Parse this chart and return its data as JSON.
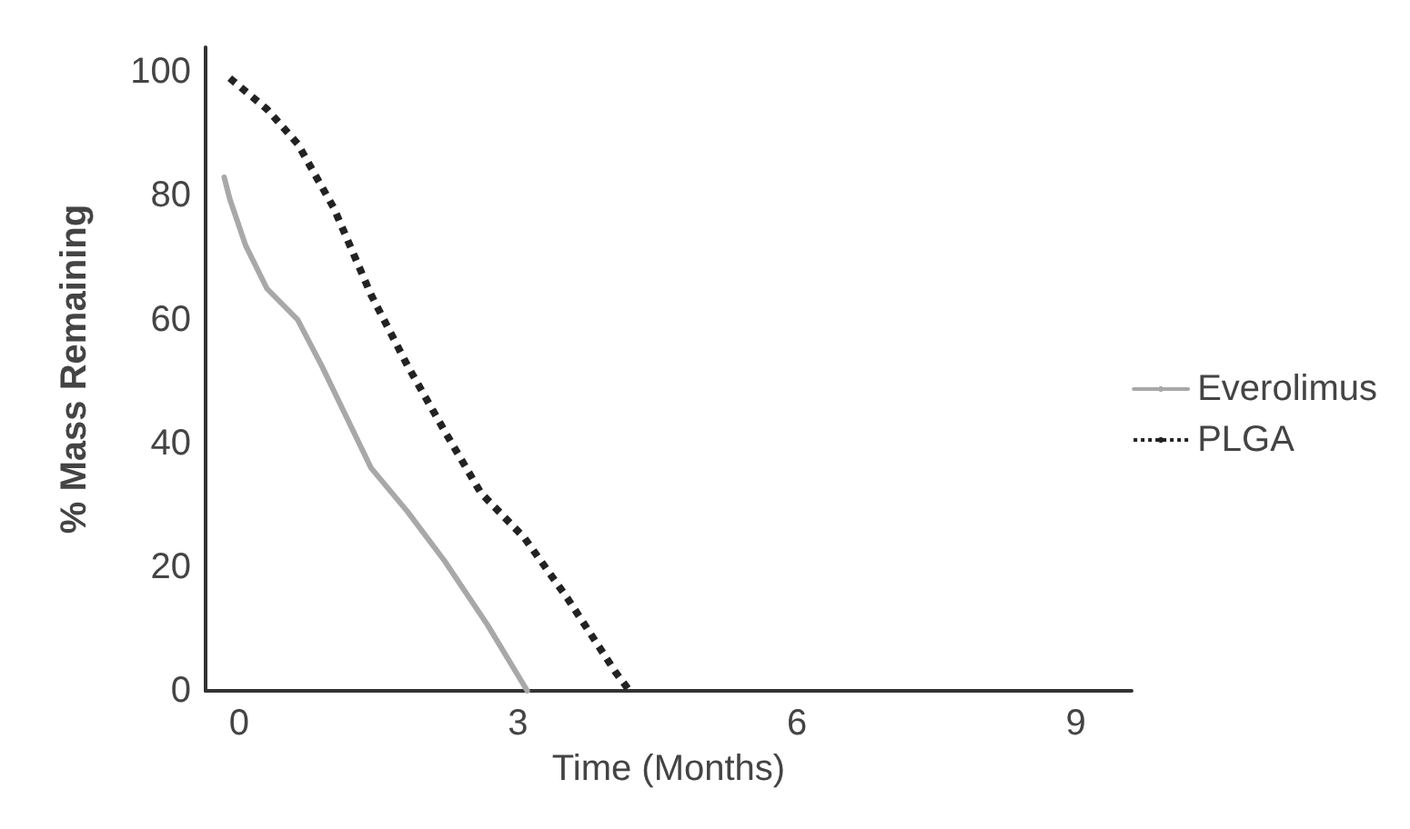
{
  "chart_data": {
    "type": "line",
    "xlabel": "Time (Months)",
    "ylabel": "% Mass Remaining",
    "xlim": [
      -0.36,
      9.6
    ],
    "ylim": [
      0,
      104
    ],
    "xticks": [
      0,
      3,
      6,
      9
    ],
    "yticks": [
      0,
      20,
      40,
      60,
      80,
      100
    ],
    "grid": false,
    "legend": "right",
    "marker": "none",
    "series": [
      {
        "name": "Everolimus",
        "color": "#a8a8a8",
        "line_style": "solid",
        "x": [
          -0.16,
          -0.1,
          0.07,
          0.3,
          0.63,
          0.89,
          1.42,
          1.81,
          2.21,
          2.67,
          3.1
        ],
        "values": [
          83,
          79.5,
          72,
          65,
          60,
          52.5,
          36,
          29,
          21,
          10.7,
          0
        ]
      },
      {
        "name": "PLGA",
        "color": "#222222",
        "line_style": "dotted",
        "x": [
          -0.1,
          0.3,
          0.63,
          1.02,
          1.42,
          1.81,
          2.21,
          2.6,
          3.07,
          3.53,
          4.05,
          4.2
        ],
        "values": [
          99,
          94,
          88.4,
          78,
          64,
          52.6,
          42,
          32,
          24.7,
          15,
          3,
          0
        ]
      }
    ]
  }
}
